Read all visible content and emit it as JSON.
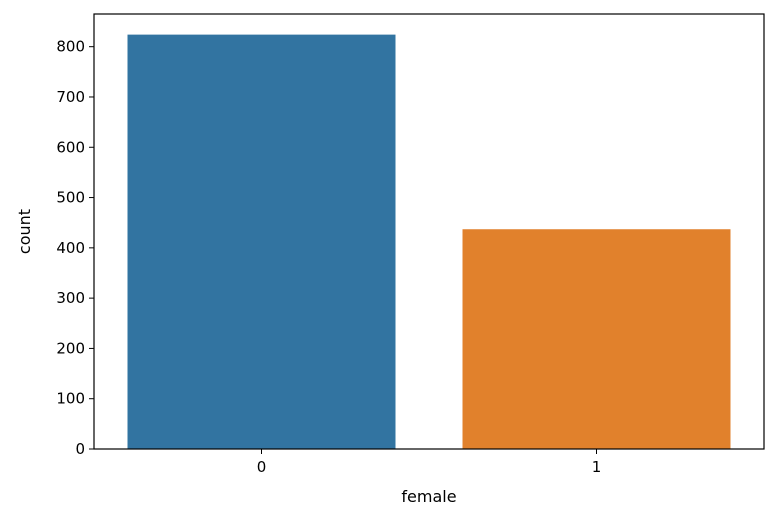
{
  "chart_data": {
    "type": "bar",
    "categories": [
      "0",
      "1"
    ],
    "values": [
      824,
      437
    ],
    "colors": [
      "#3274a1",
      "#e1812c"
    ],
    "title": "",
    "xlabel": "female",
    "ylabel": "count",
    "ylim": [
      0,
      865
    ],
    "yticks": [
      0,
      100,
      200,
      300,
      400,
      500,
      600,
      700,
      800
    ],
    "grid": false
  }
}
